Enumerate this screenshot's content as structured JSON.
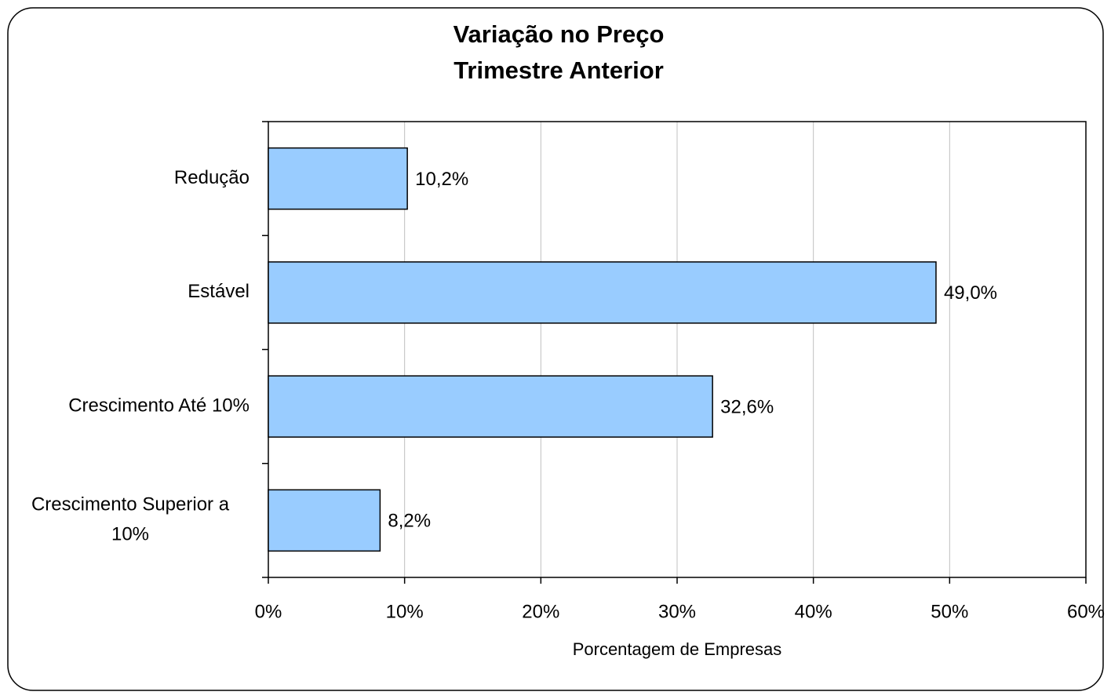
{
  "chart_data": {
    "type": "barh",
    "title": "Variação no Preço",
    "subtitle": "Trimestre Anterior",
    "categories": [
      "Redução",
      "Estável",
      "Crescimento Até 10%",
      "Crescimento Superior a 10%"
    ],
    "values": [
      10.2,
      49.0,
      32.6,
      8.2
    ],
    "value_labels": [
      "10,2%",
      "49,0%",
      "32,6%",
      "8,2%"
    ],
    "color": "#99ccff",
    "xlabel": "Porcentagem de Empresas",
    "xlim": [
      0,
      60
    ],
    "xticks": [
      {
        "value": 0,
        "label": "0%"
      },
      {
        "value": 10,
        "label": "10%"
      },
      {
        "value": 20,
        "label": "20%"
      },
      {
        "value": 30,
        "label": "30%"
      },
      {
        "value": 40,
        "label": "40%"
      },
      {
        "value": 50,
        "label": "50%"
      },
      {
        "value": 60,
        "label": "60%"
      }
    ],
    "grid": true
  }
}
